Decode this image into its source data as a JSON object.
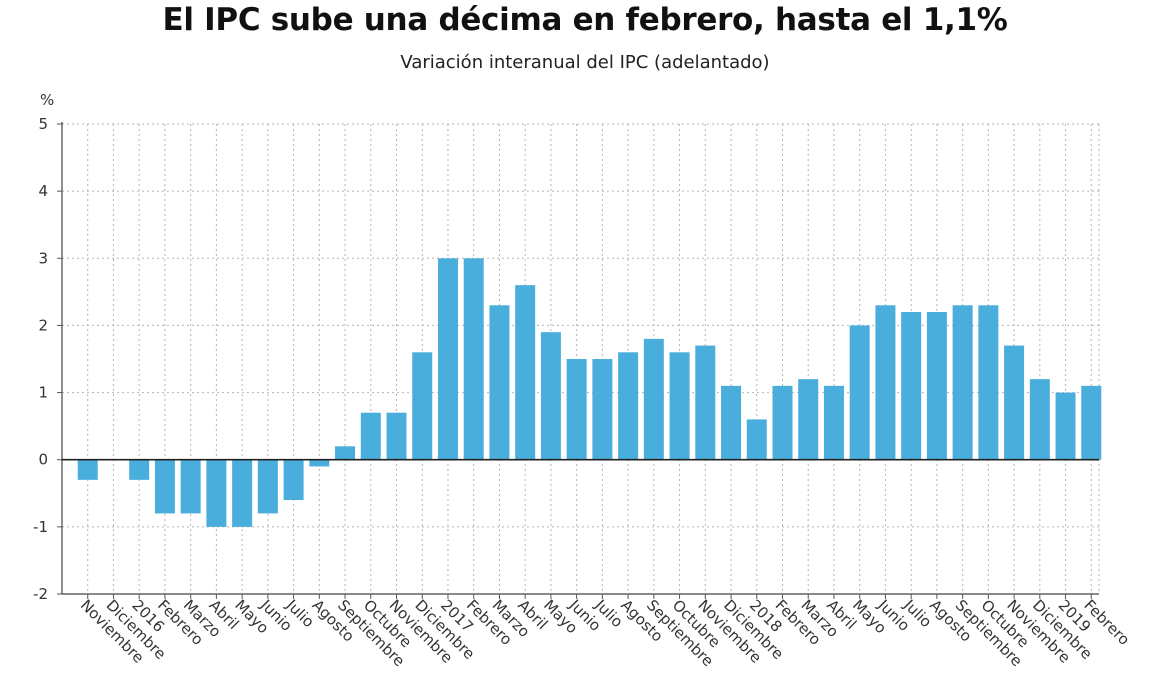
{
  "chart_data": {
    "type": "bar",
    "title": "El IPC sube una décima en febrero, hasta el 1,1%",
    "subtitle": "Variación interanual del IPC (adelantado)",
    "ylabel": "%",
    "ylim": [
      -2,
      5
    ],
    "yticks": [
      "5",
      "4",
      "3",
      "2",
      "1",
      "0",
      "-1",
      "-2"
    ],
    "grid": true,
    "bar_color": "#4aaedd",
    "categories": [
      "Noviembre",
      "Diciembre",
      "2016",
      "Febrero",
      "Marzo",
      "Abril",
      "Mayo",
      "Junio",
      "Julio",
      "Agosto",
      "Septiembre",
      "Octubre",
      "Noviembre",
      "Diciembre",
      "2017",
      "Febrero",
      "Marzo",
      "Abril",
      "Mayo",
      "Junio",
      "Julio",
      "Agosto",
      "Septiembre",
      "Octubre",
      "Noviembre",
      "Diciembre",
      "2018",
      "Febrero",
      "Marzo",
      "Abril",
      "Mayo",
      "Junio",
      "Julio",
      "Agosto",
      "Septiembre",
      "Octubre",
      "Noviembre",
      "Diciembre",
      "2019",
      "Febrero"
    ],
    "values": [
      -0.3,
      0.0,
      -0.3,
      -0.8,
      -0.8,
      -1.0,
      -1.0,
      -0.8,
      -0.6,
      -0.1,
      0.2,
      0.7,
      0.7,
      1.6,
      3.0,
      3.0,
      2.3,
      2.6,
      1.9,
      1.5,
      1.5,
      1.6,
      1.8,
      1.6,
      1.7,
      1.1,
      0.6,
      1.1,
      1.2,
      1.1,
      2.0,
      2.3,
      2.2,
      2.2,
      2.3,
      2.3,
      1.7,
      1.2,
      1.0,
      1.1
    ]
  }
}
